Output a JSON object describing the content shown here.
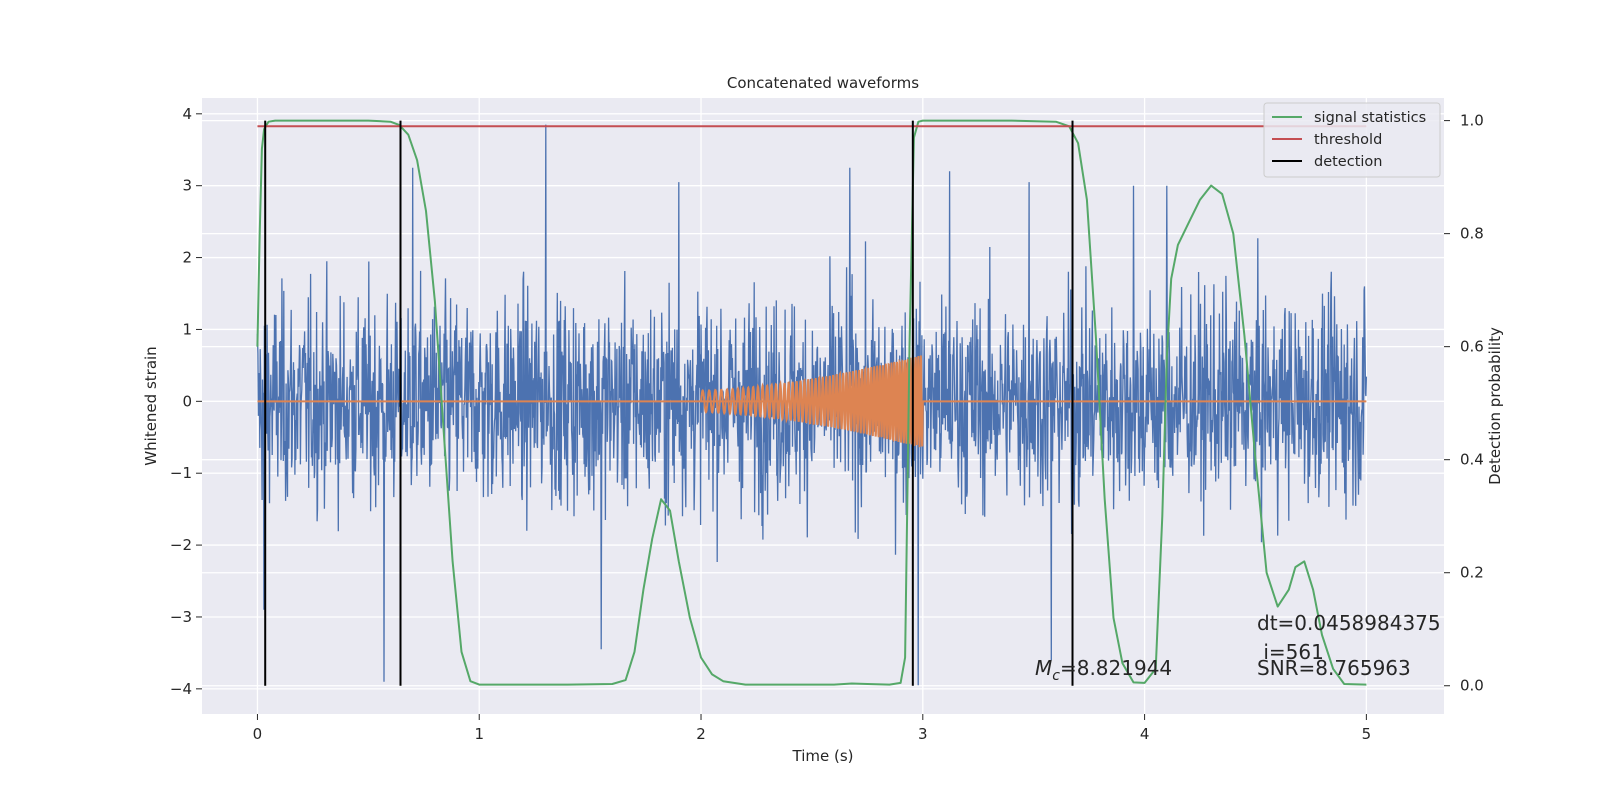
{
  "chart_data": {
    "type": "line",
    "title": "Concatenated waveforms",
    "xlabel": "Time (s)",
    "ylabel": "Whitened strain",
    "y2label": "Detection probability",
    "xlim": [
      -0.25,
      5.35
    ],
    "ylim": [
      -4.35,
      4.22
    ],
    "y2lim": [
      -0.05,
      1.04
    ],
    "x_ticks": [
      0,
      1,
      2,
      3,
      4,
      5
    ],
    "y_ticks": [
      -4,
      -3,
      -2,
      -1,
      0,
      1,
      2,
      3,
      4
    ],
    "y2_ticks": [
      0.0,
      0.2,
      0.4,
      0.6,
      0.8,
      1.0
    ],
    "grid": true,
    "legend_position": "top-right",
    "series": [
      {
        "name": "",
        "axis": "left",
        "color": "#4c72b0",
        "description_values": {
          "x_start": 0,
          "x_end": 5,
          "amplitude_typical": 2.0,
          "max": 3.85,
          "min": -3.95
        },
        "spikes": [
          {
            "x": 0.03,
            "y": -2.9
          },
          {
            "x": 0.57,
            "y": -3.9
          },
          {
            "x": 0.7,
            "y": 3.25
          },
          {
            "x": 1.3,
            "y": 3.85
          },
          {
            "x": 1.55,
            "y": -3.45
          },
          {
            "x": 1.9,
            "y": 3.05
          },
          {
            "x": 2.67,
            "y": 3.25
          },
          {
            "x": 2.98,
            "y": -3.95
          },
          {
            "x": 3.12,
            "y": 3.2
          },
          {
            "x": 3.48,
            "y": 3.05
          },
          {
            "x": 3.58,
            "y": -3.6
          },
          {
            "x": 3.95,
            "y": 3.0
          },
          {
            "x": 4.1,
            "y": 3.0
          }
        ]
      },
      {
        "name": "",
        "axis": "left",
        "color": "#dd8452",
        "chirp": {
          "x_start": 2.0,
          "x_end": 3.0,
          "amp_start": 0.15,
          "amp_end": 0.65,
          "cycles": 60
        },
        "baseline": 0
      },
      {
        "name": "signal statistics",
        "axis": "right",
        "color": "#55a868",
        "x": [
          0.0,
          0.01,
          0.02,
          0.03,
          0.05,
          0.08,
          0.12,
          0.3,
          0.5,
          0.6,
          0.64,
          0.68,
          0.72,
          0.76,
          0.8,
          0.84,
          0.88,
          0.92,
          0.96,
          1.0,
          1.2,
          1.4,
          1.6,
          1.66,
          1.7,
          1.74,
          1.78,
          1.82,
          1.86,
          1.9,
          1.95,
          2.0,
          2.05,
          2.1,
          2.2,
          2.4,
          2.6,
          2.68,
          2.75,
          2.85,
          2.9,
          2.92,
          2.94,
          2.96,
          2.98,
          3.0,
          3.1,
          3.4,
          3.6,
          3.66,
          3.7,
          3.74,
          3.78,
          3.82,
          3.86,
          3.9,
          3.95,
          4.0,
          4.05,
          4.08,
          4.1,
          4.12,
          4.15,
          4.2,
          4.25,
          4.3,
          4.35,
          4.4,
          4.45,
          4.5,
          4.55,
          4.6,
          4.65,
          4.68,
          4.72,
          4.76,
          4.8,
          4.85,
          4.9,
          5.0
        ],
        "values": [
          0.6,
          0.8,
          0.95,
          0.985,
          0.998,
          1.0,
          1.0,
          1.0,
          1.0,
          0.998,
          0.992,
          0.975,
          0.93,
          0.84,
          0.68,
          0.45,
          0.22,
          0.06,
          0.008,
          0.002,
          0.002,
          0.002,
          0.003,
          0.01,
          0.06,
          0.17,
          0.26,
          0.33,
          0.31,
          0.22,
          0.12,
          0.05,
          0.02,
          0.008,
          0.002,
          0.002,
          0.002,
          0.004,
          0.003,
          0.002,
          0.005,
          0.05,
          0.6,
          0.97,
          0.998,
          1.0,
          1.0,
          1.0,
          0.998,
          0.99,
          0.96,
          0.86,
          0.62,
          0.33,
          0.12,
          0.04,
          0.006,
          0.005,
          0.03,
          0.3,
          0.58,
          0.72,
          0.78,
          0.82,
          0.86,
          0.885,
          0.87,
          0.8,
          0.62,
          0.4,
          0.2,
          0.14,
          0.17,
          0.21,
          0.22,
          0.17,
          0.09,
          0.03,
          0.003,
          0.002
        ]
      },
      {
        "name": "threshold",
        "axis": "right",
        "color": "#c44e52",
        "x": [
          0,
          5
        ],
        "values": [
          0.99,
          0.99
        ]
      },
      {
        "name": "detection",
        "axis": "right",
        "color": "#000000",
        "vertical_lines_x": [
          0.035,
          0.645,
          2.955,
          3.675
        ],
        "y_range": [
          0.0,
          1.0
        ]
      }
    ],
    "annotations": {
      "mc_symbol": "M",
      "mc_subscript": "c",
      "mc_value": "=8.821944",
      "dt": "dt=0.0458984375",
      "i": " i=561",
      "snr": "SNR=8.765963"
    }
  }
}
